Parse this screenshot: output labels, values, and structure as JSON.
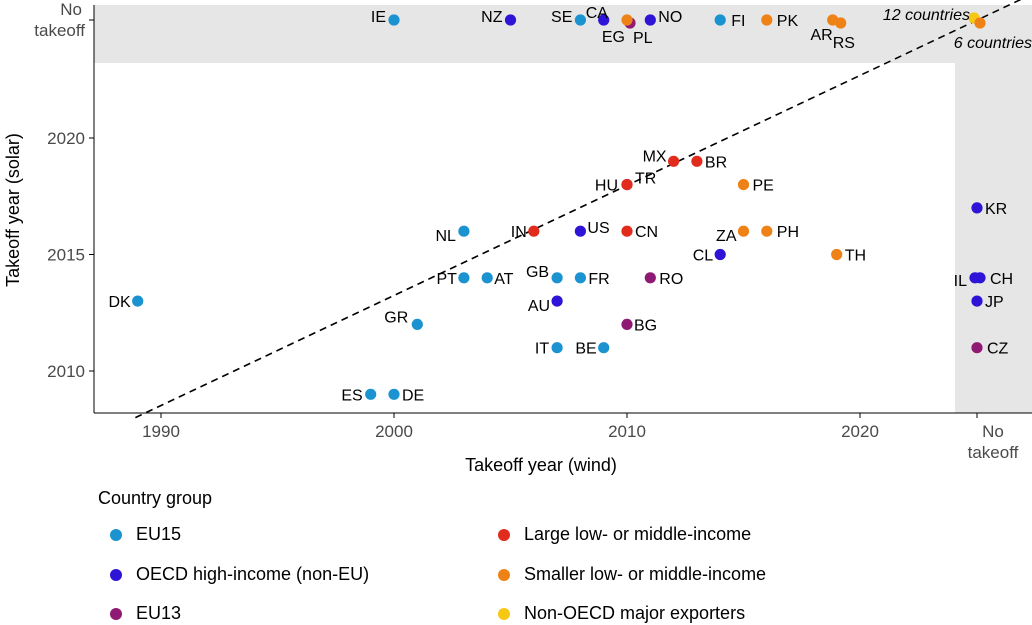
{
  "chart_data": {
    "type": "scatter",
    "xlabel": "Takeoff year (wind)",
    "ylabel": "Takeoff year (solar)",
    "xlim": [
      1987.5,
      2028.5
    ],
    "ylim": [
      2008,
      2027
    ],
    "x_ticks": [
      1990,
      2000,
      2010,
      2020
    ],
    "y_ticks": [
      2010,
      2015,
      2020
    ],
    "x_no_takeoff_label": "No takeoff",
    "y_no_takeoff_label": "No takeoff",
    "no_takeoff_band_fill": "#e6e6e6",
    "trend_line": {
      "style": "dashed",
      "from": [
        1988.9,
        2008
      ],
      "to": [
        2028.5,
        2026.7
      ]
    },
    "groups": [
      {
        "name": "EU15",
        "color": "#1b93d1"
      },
      {
        "name": "OECD high-income (non-EU)",
        "color": "#2e14d6"
      },
      {
        "name": "EU13",
        "color": "#8e1a73"
      },
      {
        "name": "Large low- or middle-income",
        "color": "#e12b1c"
      },
      {
        "name": "Smaller low- or middle-income",
        "color": "#ee8216"
      },
      {
        "name": "Non-OECD major exporters",
        "color": "#f6c813"
      }
    ],
    "points": [
      {
        "label": "DK",
        "group": "EU15",
        "wind": 1989,
        "solar": 2013
      },
      {
        "label": "GR",
        "group": "EU15",
        "wind": 2001,
        "solar": 2012
      },
      {
        "label": "ES",
        "group": "EU15",
        "wind": 1999,
        "solar": 2009
      },
      {
        "label": "DE",
        "group": "EU15",
        "wind": 2000,
        "solar": 2009
      },
      {
        "label": "NL",
        "group": "EU15",
        "wind": 2003,
        "solar": 2016
      },
      {
        "label": "PT",
        "group": "EU15",
        "wind": 2003,
        "solar": 2014
      },
      {
        "label": "AT",
        "group": "EU15",
        "wind": 2004,
        "solar": 2014
      },
      {
        "label": "GB",
        "group": "EU15",
        "wind": 2007,
        "solar": 2014
      },
      {
        "label": "FR",
        "group": "EU15",
        "wind": 2008,
        "solar": 2014
      },
      {
        "label": "IT",
        "group": "EU15",
        "wind": 2007,
        "solar": 2011
      },
      {
        "label": "BE",
        "group": "EU15",
        "wind": 2009,
        "solar": 2011
      },
      {
        "label": "IE",
        "group": "EU15",
        "wind": 2000,
        "solar": "No takeoff"
      },
      {
        "label": "SE",
        "group": "EU15",
        "wind": 2008,
        "solar": "No takeoff"
      },
      {
        "label": "FI",
        "group": "EU15",
        "wind": 2014,
        "solar": "No takeoff"
      },
      {
        "label": "US",
        "group": "OECD high-income (non-EU)",
        "wind": 2008,
        "solar": 2016
      },
      {
        "label": "AU",
        "group": "OECD high-income (non-EU)",
        "wind": 2007,
        "solar": 2013
      },
      {
        "label": "CL",
        "group": "OECD high-income (non-EU)",
        "wind": 2014,
        "solar": 2015
      },
      {
        "label": "NZ",
        "group": "OECD high-income (non-EU)",
        "wind": 2005,
        "solar": "No takeoff"
      },
      {
        "label": "CA",
        "group": "OECD high-income (non-EU)",
        "wind": 2009,
        "solar": "No takeoff"
      },
      {
        "label": "NO",
        "group": "OECD high-income (non-EU)",
        "wind": 2011,
        "solar": "No takeoff"
      },
      {
        "label": "KR",
        "group": "OECD high-income (non-EU)",
        "wind": "No takeoff",
        "solar": 2017
      },
      {
        "label": "IL",
        "group": "OECD high-income (non-EU)",
        "wind": "No takeoff",
        "solar": 2014
      },
      {
        "label": "CH",
        "group": "OECD high-income (non-EU)",
        "wind": "No takeoff",
        "solar": 2014
      },
      {
        "label": "JP",
        "group": "OECD high-income (non-EU)",
        "wind": "No takeoff",
        "solar": 2013
      },
      {
        "label": "HU",
        "group": "EU13",
        "wind": 2010,
        "solar": 2018
      },
      {
        "label": "RO",
        "group": "EU13",
        "wind": 2011,
        "solar": 2014
      },
      {
        "label": "BG",
        "group": "EU13",
        "wind": 2010,
        "solar": 2012
      },
      {
        "label": "PL",
        "group": "EU13",
        "wind": 2010,
        "solar": "No takeoff"
      },
      {
        "label": "CZ",
        "group": "EU13",
        "wind": "No takeoff",
        "solar": 2011
      },
      {
        "label": "MX",
        "group": "Large low- or middle-income",
        "wind": 2012,
        "solar": 2019
      },
      {
        "label": "BR",
        "group": "Large low- or middle-income",
        "wind": 2013,
        "solar": 2019
      },
      {
        "label": "TR",
        "group": "Large low- or middle-income",
        "wind": 2010,
        "solar": 2018
      },
      {
        "label": "IN",
        "group": "Large low- or middle-income",
        "wind": 2006,
        "solar": 2016
      },
      {
        "label": "CN",
        "group": "Large low- or middle-income",
        "wind": 2010,
        "solar": 2016
      },
      {
        "label": "PE",
        "group": "Smaller low- or middle-income",
        "wind": 2015,
        "solar": 2018
      },
      {
        "label": "ZA",
        "group": "Smaller low- or middle-income",
        "wind": 2015,
        "solar": 2016
      },
      {
        "label": "PH",
        "group": "Smaller low- or middle-income",
        "wind": 2016,
        "solar": 2016
      },
      {
        "label": "TH",
        "group": "Smaller low- or middle-income",
        "wind": 2019,
        "solar": 2015
      },
      {
        "label": "EG",
        "group": "Smaller low- or middle-income",
        "wind": 2010,
        "solar": "No takeoff"
      },
      {
        "label": "PK",
        "group": "Smaller low- or middle-income",
        "wind": 2016,
        "solar": "No takeoff"
      },
      {
        "label": "AR",
        "group": "Smaller low- or middle-income",
        "wind": 2019,
        "solar": "No takeoff"
      },
      {
        "label": "RS",
        "group": "Smaller low- or middle-income",
        "wind": 2019,
        "solar": "No takeoff"
      },
      {
        "label": "12 countries",
        "group": "Non-OECD major exporters",
        "wind": "No takeoff",
        "solar": "No takeoff"
      },
      {
        "label": "6 countries",
        "group": "Smaller low- or middle-income",
        "wind": "No takeoff",
        "solar": "No takeoff"
      }
    ]
  },
  "legend": {
    "title": "Country group"
  }
}
